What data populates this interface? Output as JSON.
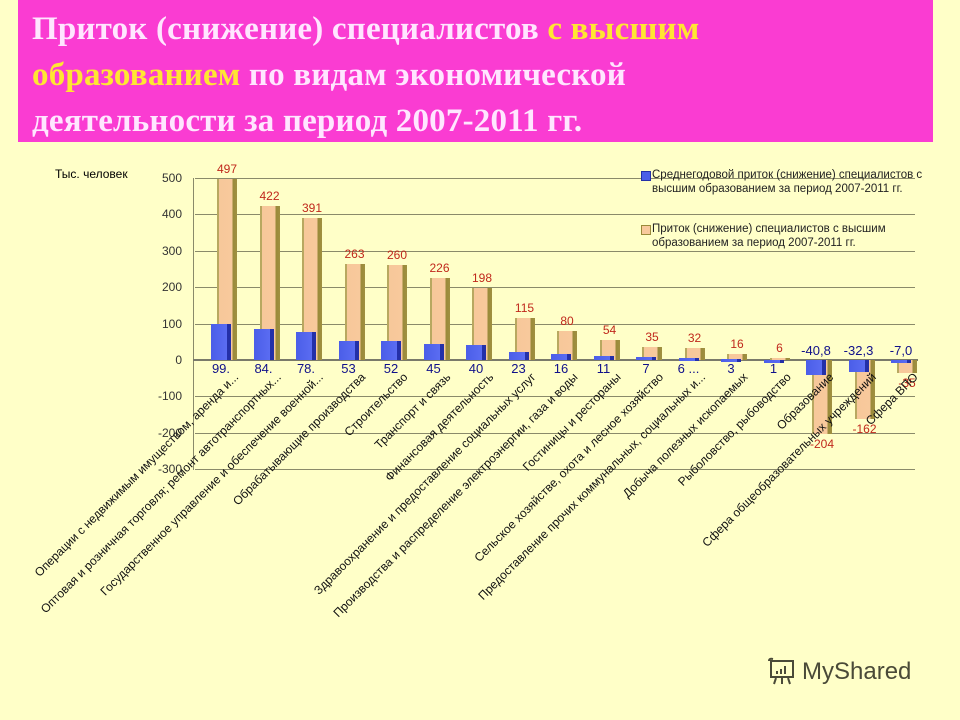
{
  "title": {
    "part1": "Приток (снижение) специалистов ",
    "highlight1": "с высшим",
    "highlight2": "образованием",
    "part2": " по видам экономической",
    "part3": "деятельности за период 2007-2011 гг."
  },
  "watermark": "MyShared",
  "colors": {
    "title_bg": "#fa3cd2",
    "title_text": "#ffe6ff",
    "title_highlight": "#ffe632",
    "page_bg": "#ffffc8",
    "series_avg": "#5a6cf2",
    "series_total": "#f8c99c",
    "label_red": "#c0281c",
    "label_blue": "#10108a"
  },
  "chart_data": {
    "type": "bar",
    "title": "Приток (снижение) специалистов с высшим образованием по видам экономической деятельности за период 2007-2011 гг.",
    "ylabel": "Тыс. человек",
    "xlabel": "",
    "ylim": [
      -300,
      500
    ],
    "yticks": [
      500,
      400,
      300,
      200,
      100,
      0,
      -100,
      -200,
      -300
    ],
    "grid": true,
    "legend_position": "top-right",
    "categories": [
      "Операции с недвижимым имуществом, аренда и...",
      "Оптовая и розничная торговля; ремонт автотранспортных...",
      "Государственное управление и обеспечение военной...",
      "Обрабатывающие производства",
      "Строительство",
      "Транспорт и связь",
      "Финансовая деятельность",
      "Здравоохранение и предоставление социальных услуг",
      "Производства и распределение электроэнергии, газа и воды",
      "Гостиницы и рестораны",
      "Сельское хозяйстве, охота и лесное хозяйство",
      "Предоставление прочих коммунальных, социальных и...",
      "Добыча полезных ископаемых",
      "Рыболовство, рыбоводство",
      "Образование",
      "Сфера общеобразовательных учреждений",
      "Сфера ВПО"
    ],
    "series": [
      {
        "name": "Среднегодовой приток (снижение) специалистов с высшим образованием за период 2007-2011 гг.",
        "values": [
          99.4,
          84.4,
          78.2,
          53,
          52,
          45,
          40,
          23,
          16,
          11,
          7,
          6,
          3,
          1,
          -40.8,
          -32.3,
          -7.0
        ],
        "labels": [
          "99.",
          "84.",
          "78.",
          "53",
          "52",
          "45",
          "40",
          "23",
          "16",
          "11",
          "7",
          "6 ...",
          "3",
          "1",
          "-40,8",
          "-32,3",
          "-7,0"
        ]
      },
      {
        "name": "Приток (снижение) специалистов с высшим образованием за период 2007-2011 гг.",
        "values": [
          497,
          422,
          391,
          263,
          260,
          226,
          198,
          115,
          80,
          54,
          35,
          32,
          16,
          6,
          -204,
          -162,
          -35
        ],
        "labels": [
          "497",
          "422",
          "391",
          "263",
          "260",
          "226",
          "198",
          "115",
          "80",
          "54",
          "35",
          "32",
          "16",
          "6",
          "-204",
          "-162",
          "-35"
        ]
      }
    ]
  }
}
